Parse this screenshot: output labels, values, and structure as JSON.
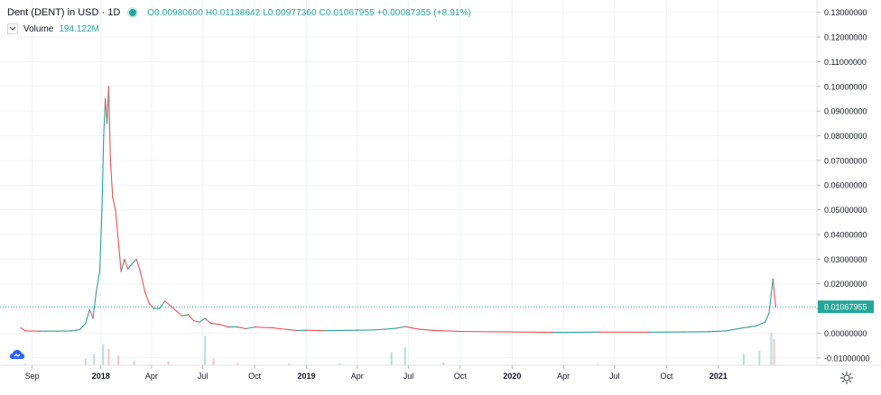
{
  "legend": {
    "title": "Dent (DENT) in USD · 1D",
    "open": "O0.00980600",
    "high": "H0.01138642",
    "low": "L0.00977360",
    "close": "C0.01067955",
    "change": "+0.00087355 (+8.91%)",
    "volume_label": "Volume",
    "volume_value": "194.122M"
  },
  "colors": {
    "up": "#26a69a",
    "down": "#ef5350",
    "line": "#c0504d",
    "grid": "#f0f3fa",
    "axis_text": "#131722",
    "price_line": "#26a69a"
  },
  "icons": {
    "collapse": "chevron-down-icon",
    "logo": "cloud-logo-icon",
    "settings": "gear-icon"
  },
  "chart_data": {
    "type": "line",
    "y_axis": {
      "ticks": [
        "0.13000000",
        "0.12000000",
        "0.11000000",
        "0.10000000",
        "0.09000000",
        "0.08000000",
        "0.07000000",
        "0.06000000",
        "0.05000000",
        "0.04000000",
        "0.03000000",
        "0.02000000",
        "0.01000000",
        "0.00000000",
        "-0.01000000"
      ],
      "tick_values": [
        0.13,
        0.12,
        0.11,
        0.1,
        0.09,
        0.08,
        0.07,
        0.06,
        0.05,
        0.04,
        0.03,
        0.02,
        0.01,
        0.0,
        -0.01
      ],
      "range": [
        -0.013,
        0.135
      ]
    },
    "x_axis": {
      "labels": [
        "Sep",
        "2018",
        "Apr",
        "Jul",
        "Oct",
        "2019",
        "Apr",
        "Jul",
        "Oct",
        "2020",
        "Apr",
        "Jul",
        "Oct",
        "2021"
      ],
      "label_dates": [
        "2017-09-01",
        "2018-01-01",
        "2018-04-01",
        "2018-07-01",
        "2018-10-01",
        "2019-01-01",
        "2019-04-01",
        "2019-07-01",
        "2019-10-01",
        "2020-01-01",
        "2020-04-01",
        "2020-07-01",
        "2020-10-01",
        "2021-01-01"
      ],
      "range": [
        "2017-07-06",
        "2021-06-25"
      ]
    },
    "grid": true,
    "current_price": 0.01067955,
    "current_price_label": "0.01067955",
    "price_series": [
      [
        "2017-08-12",
        0.0022
      ],
      [
        "2017-08-20",
        0.0009
      ],
      [
        "2017-09-15",
        0.0008
      ],
      [
        "2017-10-15",
        0.0008
      ],
      [
        "2017-11-10",
        0.0009
      ],
      [
        "2017-11-25",
        0.0015
      ],
      [
        "2017-12-05",
        0.004
      ],
      [
        "2017-12-12",
        0.0095
      ],
      [
        "2017-12-18",
        0.006
      ],
      [
        "2017-12-24",
        0.017
      ],
      [
        "2017-12-30",
        0.025
      ],
      [
        "2018-01-03",
        0.05
      ],
      [
        "2018-01-06",
        0.08
      ],
      [
        "2018-01-09",
        0.095
      ],
      [
        "2018-01-12",
        0.085
      ],
      [
        "2018-01-15",
        0.1
      ],
      [
        "2018-01-18",
        0.07
      ],
      [
        "2018-01-22",
        0.055
      ],
      [
        "2018-01-27",
        0.05
      ],
      [
        "2018-02-02",
        0.035
      ],
      [
        "2018-02-06",
        0.025
      ],
      [
        "2018-02-12",
        0.03
      ],
      [
        "2018-02-18",
        0.026
      ],
      [
        "2018-02-25",
        0.028
      ],
      [
        "2018-03-05",
        0.03
      ],
      [
        "2018-03-12",
        0.025
      ],
      [
        "2018-03-20",
        0.017
      ],
      [
        "2018-03-28",
        0.012
      ],
      [
        "2018-04-05",
        0.01
      ],
      [
        "2018-04-15",
        0.01
      ],
      [
        "2018-04-25",
        0.013
      ],
      [
        "2018-05-05",
        0.011
      ],
      [
        "2018-05-15",
        0.009
      ],
      [
        "2018-05-25",
        0.007
      ],
      [
        "2018-06-05",
        0.0075
      ],
      [
        "2018-06-15",
        0.005
      ],
      [
        "2018-06-25",
        0.0045
      ],
      [
        "2018-07-05",
        0.006
      ],
      [
        "2018-07-15",
        0.004
      ],
      [
        "2018-08-01",
        0.0035
      ],
      [
        "2018-08-15",
        0.0025
      ],
      [
        "2018-09-01",
        0.0025
      ],
      [
        "2018-09-15",
        0.0018
      ],
      [
        "2018-10-01",
        0.0025
      ],
      [
        "2018-10-15",
        0.0023
      ],
      [
        "2018-11-01",
        0.0022
      ],
      [
        "2018-11-15",
        0.0018
      ],
      [
        "2018-12-01",
        0.0014
      ],
      [
        "2018-12-15",
        0.0011
      ],
      [
        "2019-01-01",
        0.0012
      ],
      [
        "2019-02-01",
        0.001
      ],
      [
        "2019-03-01",
        0.0011
      ],
      [
        "2019-04-01",
        0.0012
      ],
      [
        "2019-05-01",
        0.0013
      ],
      [
        "2019-05-20",
        0.0016
      ],
      [
        "2019-06-10",
        0.002
      ],
      [
        "2019-06-25",
        0.0027
      ],
      [
        "2019-07-05",
        0.0022
      ],
      [
        "2019-07-20",
        0.0016
      ],
      [
        "2019-08-15",
        0.0011
      ],
      [
        "2019-10-01",
        0.0007
      ],
      [
        "2020-01-01",
        0.0005
      ],
      [
        "2020-03-15",
        0.0003
      ],
      [
        "2020-06-01",
        0.00045
      ],
      [
        "2020-09-01",
        0.0004
      ],
      [
        "2020-11-01",
        0.0005
      ],
      [
        "2020-12-15",
        0.0006
      ],
      [
        "2021-01-15",
        0.0009
      ],
      [
        "2021-02-10",
        0.002
      ],
      [
        "2021-02-25",
        0.0025
      ],
      [
        "2021-03-10",
        0.003
      ],
      [
        "2021-03-25",
        0.0045
      ],
      [
        "2021-04-01",
        0.008
      ],
      [
        "2021-04-05",
        0.016
      ],
      [
        "2021-04-08",
        0.022
      ],
      [
        "2021-04-11",
        0.0147
      ],
      [
        "2021-04-13",
        0.0107
      ]
    ],
    "volume_series": [
      [
        "2017-08-20",
        0.05
      ],
      [
        "2017-12-05",
        0.2
      ],
      [
        "2017-12-20",
        0.35
      ],
      [
        "2018-01-05",
        0.65
      ],
      [
        "2018-01-15",
        0.5
      ],
      [
        "2018-02-01",
        0.3
      ],
      [
        "2018-03-01",
        0.15
      ],
      [
        "2018-05-01",
        0.12
      ],
      [
        "2018-07-05",
        0.9
      ],
      [
        "2018-07-20",
        0.2
      ],
      [
        "2018-09-01",
        0.08
      ],
      [
        "2018-12-01",
        0.05
      ],
      [
        "2019-03-01",
        0.06
      ],
      [
        "2019-06-01",
        0.4
      ],
      [
        "2019-06-25",
        0.55
      ],
      [
        "2019-09-01",
        0.08
      ],
      [
        "2020-06-01",
        0.04
      ],
      [
        "2021-02-15",
        0.35
      ],
      [
        "2021-03-15",
        0.45
      ],
      [
        "2021-04-05",
        1.0
      ],
      [
        "2021-04-10",
        0.8
      ]
    ]
  }
}
